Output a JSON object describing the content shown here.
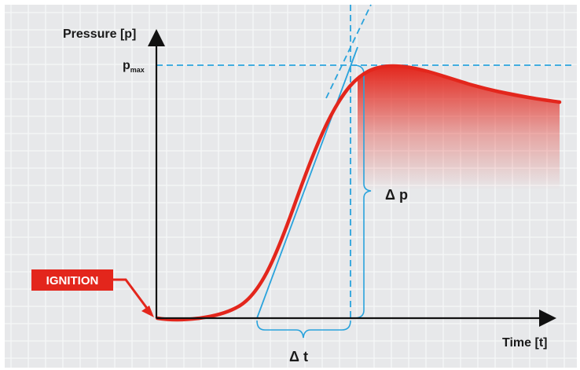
{
  "labels": {
    "y_axis": "Pressure [p]",
    "x_axis": "Time [t]",
    "p_main": "p",
    "p_sub": "max",
    "delta_p": "Δ p",
    "delta_t": "Δ t",
    "ignition": "IGNITION"
  },
  "colors": {
    "background": "#e7e8ea",
    "grid": "#f6f7f8",
    "axis": "#111111",
    "curve": "#e3261c",
    "fill": "#e3261c",
    "guide": "#2aa3dc",
    "ignition_box": "#e3261c"
  }
}
